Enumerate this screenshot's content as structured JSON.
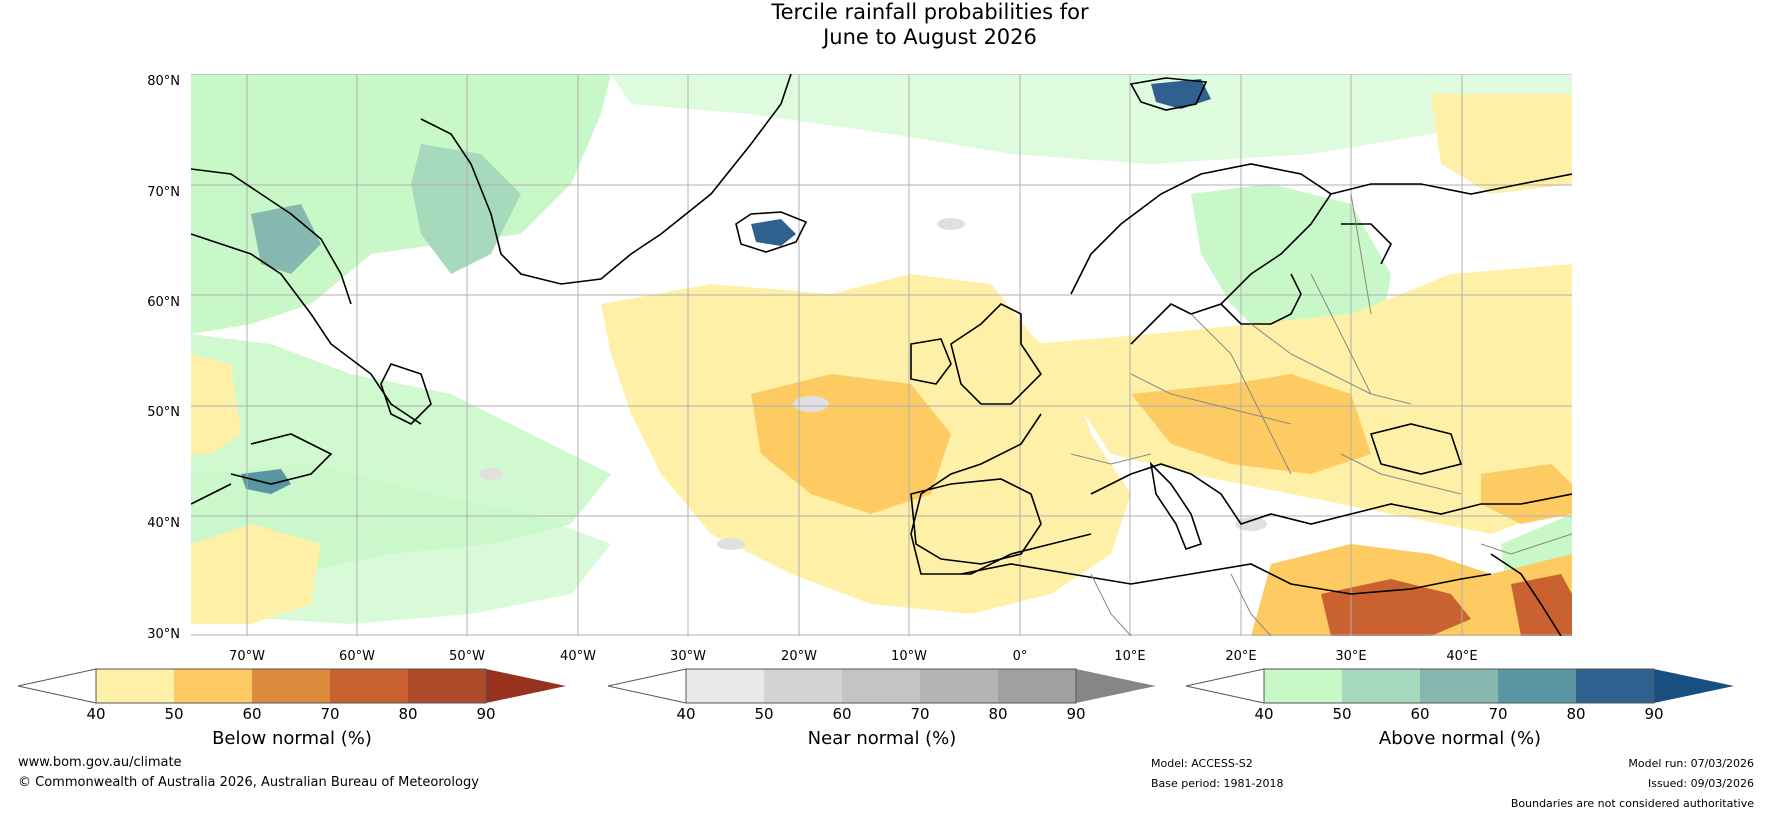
{
  "title": {
    "line1": "Tercile rainfall probabilities for",
    "line2": "June to August 2026"
  },
  "map": {
    "latitude_labels": [
      "80°N",
      "70°N",
      "60°N",
      "50°N",
      "40°N",
      "30°N"
    ],
    "longitude_labels": [
      "70°W",
      "60°W",
      "50°W",
      "40°W",
      "30°W",
      "20°W",
      "10°W",
      "0°",
      "10°E",
      "20°E",
      "30°E",
      "40°E"
    ]
  },
  "colorbars": [
    {
      "title": "Below normal (%)",
      "ticks": [
        "40",
        "50",
        "60",
        "70",
        "80",
        "90"
      ],
      "colors": [
        "#fff0a8",
        "#fdcb62",
        "#dd8c3e",
        "#c96230",
        "#ad4a2a",
        "#96321e"
      ]
    },
    {
      "title": "Near normal (%)",
      "ticks": [
        "40",
        "50",
        "60",
        "70",
        "80",
        "90"
      ],
      "colors": [
        "#e8e8e8",
        "#d4d4d4",
        "#c4c4c4",
        "#b4b6b3",
        "#a0a0a0",
        "#868686"
      ]
    },
    {
      "title": "Above normal (%)",
      "ticks": [
        "40",
        "50",
        "60",
        "70",
        "80",
        "90"
      ],
      "colors": [
        "#c8f8c8",
        "#a7d9bd",
        "#86b8b0",
        "#5a96a2",
        "#306090",
        "#184f80"
      ]
    }
  ],
  "footer": {
    "website": "www.bom.gov.au/climate",
    "copyright": "© Commonwealth of Australia 2026, Australian Bureau of Meteorology",
    "model": "Model: ACCESS-S2",
    "base_period": "Base period: 1981-2018",
    "model_run": "Model run: 07/03/2026",
    "issued": "Issued: 09/03/2026",
    "disclaimer": "Boundaries are not considered authoritative"
  },
  "colors": {
    "green": "#c8f8c8",
    "yellow": "#fff0a8",
    "orange": "#fdcb62",
    "grey": "#e0e0e0",
    "coast": "#000000",
    "border": "#888888",
    "grid": "#b0b0b0"
  }
}
